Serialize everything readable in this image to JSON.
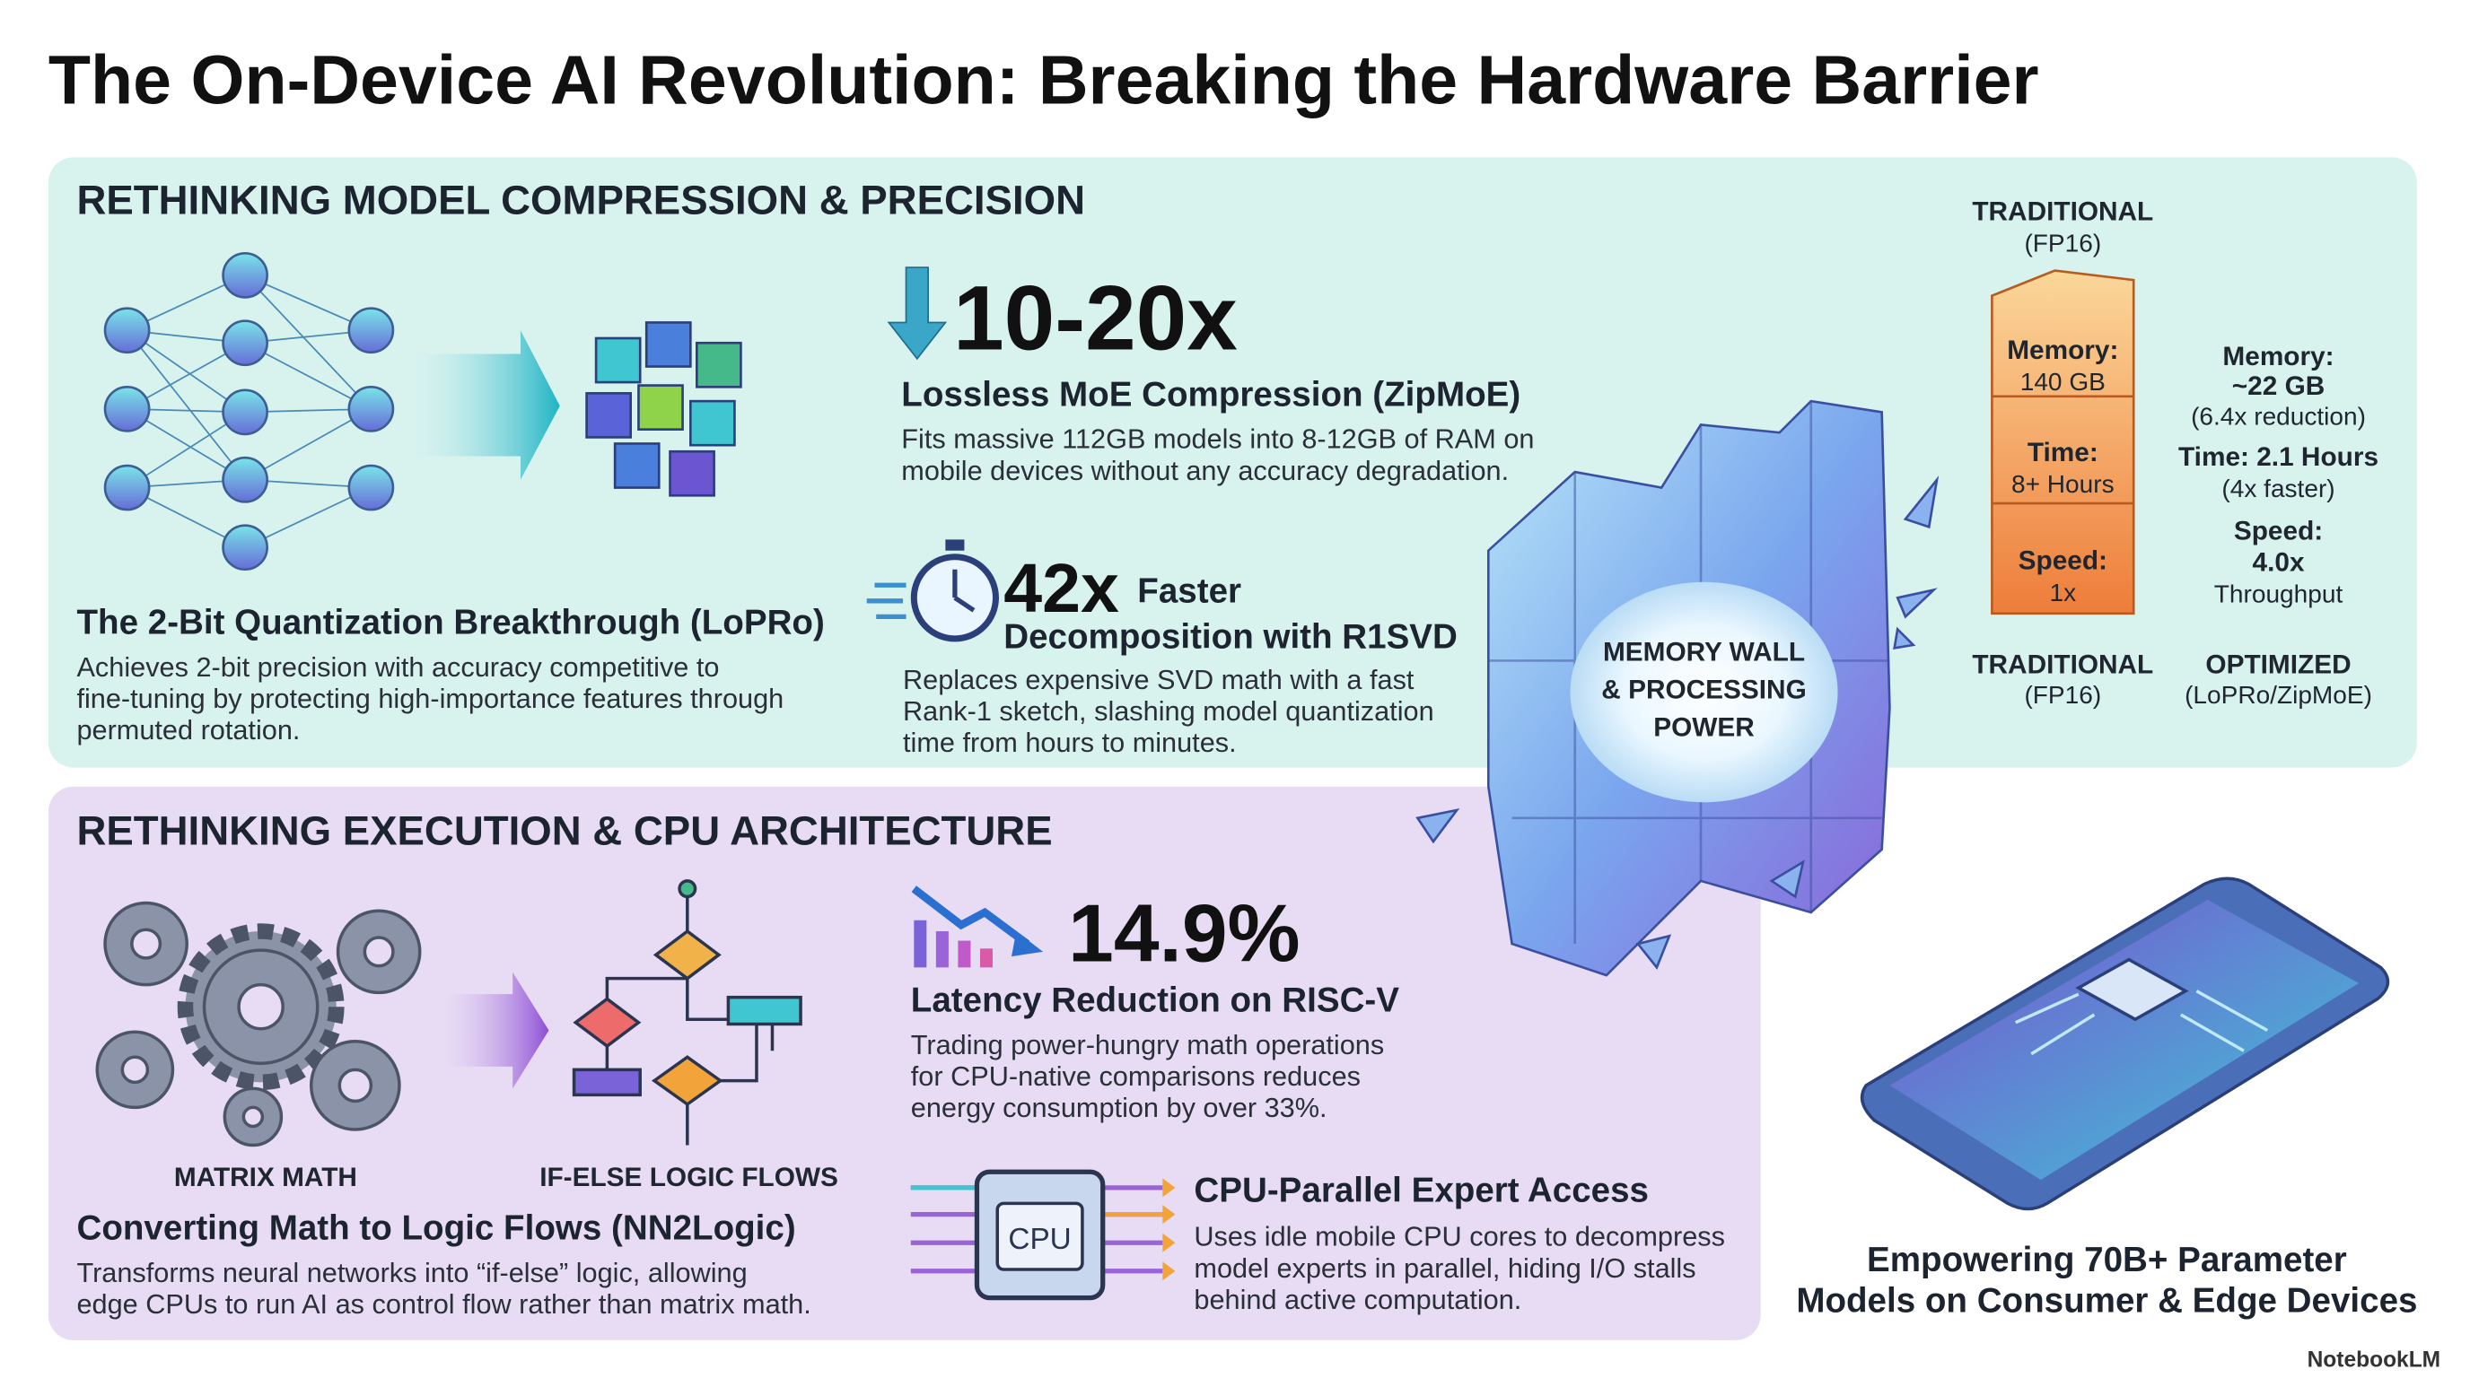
{
  "title": "The On-Device AI Revolution: Breaking the Hardware Barrier",
  "compression": {
    "heading": "RETHINKING MODEL COMPRESSION & PRECISION",
    "lopro": {
      "title": "The 2-Bit Quantization Breakthrough (LoPRo)",
      "body": [
        "Achieves 2-bit precision with accuracy competitive to",
        "fine-tuning by protecting high-importance features through",
        "permuted rotation."
      ]
    },
    "zipmoe": {
      "stat": "10-20x",
      "title": "Lossless MoE Compression (ZipMoE)",
      "body": [
        "Fits massive 112GB models into 8-12GB of RAM on",
        "mobile devices without any accuracy degradation."
      ]
    },
    "r1svd": {
      "stat": "42x",
      "stat_suffix": "Faster",
      "title": "Decomposition with R1SVD",
      "body": [
        "Replaces expensive SVD math with a fast",
        "Rank-1 sketch, slashing model quantization",
        "time from hours to minutes."
      ]
    },
    "comparison": {
      "top_label": [
        "TRADITIONAL",
        "(FP16)"
      ],
      "traditional": [
        [
          "Memory:",
          "140 GB"
        ],
        [
          "Time:",
          "8+ Hours"
        ],
        [
          "Speed:",
          "1x"
        ]
      ],
      "optimized": [
        "Memory:",
        "~22 GB",
        "(6.4x reduction)",
        "Time: 2.1 Hours",
        "(4x faster)",
        "Speed:",
        "4.0x",
        "Throughput"
      ],
      "bottom_traditional": [
        "TRADITIONAL",
        "(FP16)"
      ],
      "bottom_optimized": [
        "OPTIMIZED",
        "(LoPRo/ZipMoE)"
      ]
    }
  },
  "wall": [
    "MEMORY WALL",
    "& PROCESSING",
    "POWER"
  ],
  "execution": {
    "heading": "RETHINKING EXECUTION & CPU ARCHITECTURE",
    "matrix_label": "MATRIX MATH",
    "logic_label": "IF-ELSE LOGIC FLOWS",
    "nn2logic": {
      "title": "Converting Math to Logic Flows (NN2Logic)",
      "body": [
        "Transforms neural networks into “if-else” logic, allowing",
        "edge CPUs to run AI as control flow rather than matrix math."
      ]
    },
    "latency": {
      "stat": "14.9%",
      "title": "Latency Reduction on RISC-V",
      "body": [
        "Trading power-hungry math operations",
        "for CPU-native comparisons reduces",
        "energy consumption by over 33%."
      ]
    },
    "cpu": {
      "chip": "CPU",
      "title": "CPU-Parallel Expert Access",
      "body": [
        "Uses idle mobile CPU cores to decompress",
        "model experts in parallel, hiding I/O stalls",
        "behind active computation."
      ]
    }
  },
  "phone_caption": [
    "Empowering 70B+ Parameter",
    "Models on Consumer & Edge Devices"
  ],
  "footer": "NotebookLM"
}
